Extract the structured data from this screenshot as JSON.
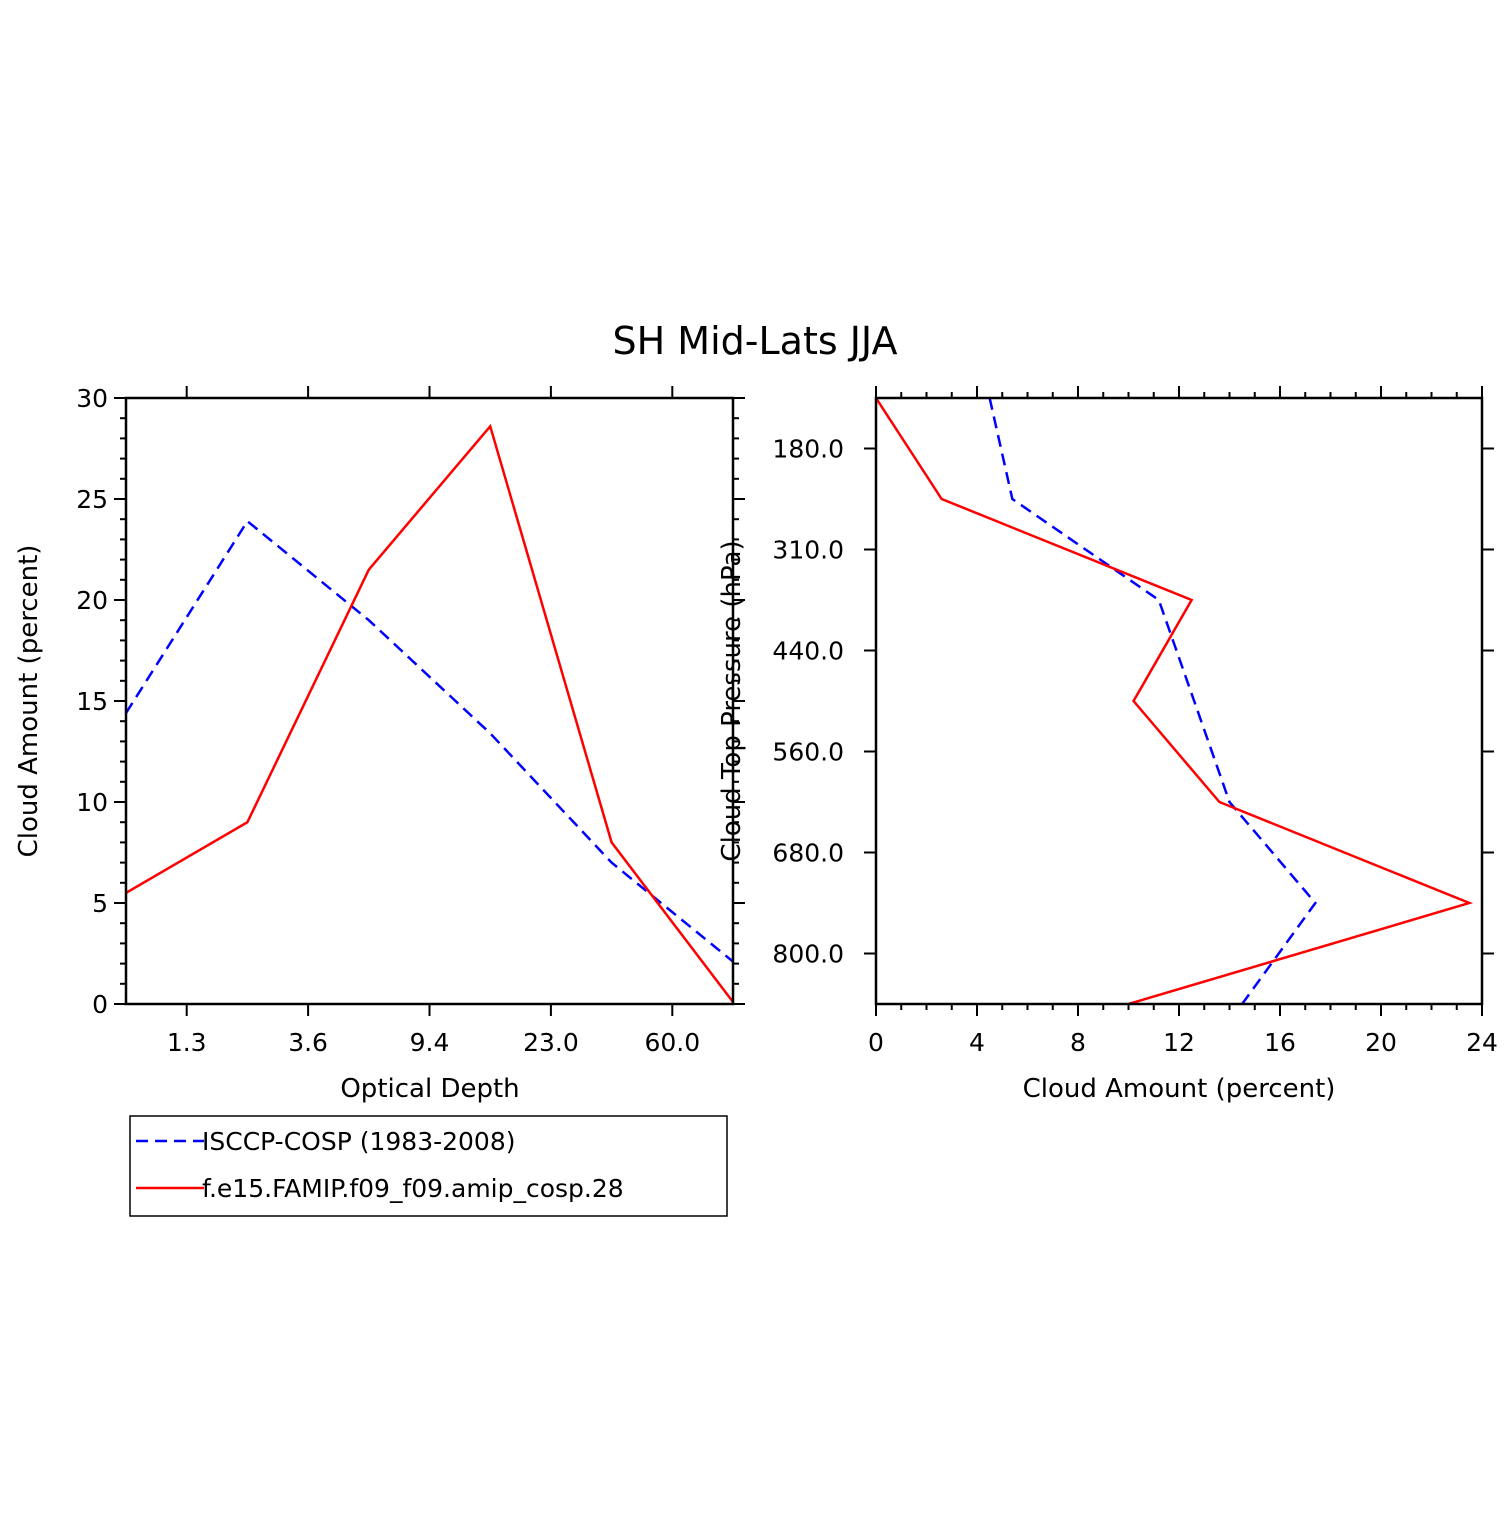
{
  "title": "SH Mid-Lats JJA",
  "colors": {
    "obs": "#0000ff",
    "model": "#ff0000",
    "axis": "#000000"
  },
  "legend": {
    "obs_label": "ISCCP-COSP (1983-2008)",
    "model_label": "f.e15.FAMIP.f09_f09.amip_cosp.28"
  },
  "chart_data": [
    {
      "type": "line",
      "title": "SH Mid-Lats JJA",
      "xlabel": "Optical Depth",
      "ylabel": "Cloud Amount (percent)",
      "x_tick_labels": [
        "1.3",
        "3.6",
        "9.4",
        "23.0",
        "60.0"
      ],
      "y_tick_labels": [
        "0",
        "5",
        "10",
        "15",
        "20",
        "25",
        "30"
      ],
      "x": [
        0,
        1,
        2,
        3,
        4,
        5
      ],
      "xlim": [
        0,
        5
      ],
      "ylim": [
        0,
        30
      ],
      "series": [
        {
          "name": "ISCCP-COSP (1983-2008)",
          "style": "dashed",
          "values": [
            14.4,
            23.9,
            19.0,
            13.4,
            7.0,
            2.1
          ]
        },
        {
          "name": "f.e15.FAMIP.f09_f09.amip_cosp.28",
          "style": "solid",
          "values": [
            5.5,
            9.0,
            21.5,
            28.6,
            8.0,
            0.1
          ]
        }
      ]
    },
    {
      "type": "line",
      "xlabel": "Cloud Amount (percent)",
      "ylabel": "Cloud Top Pressure (hPa)",
      "x_tick_labels": [
        "0",
        "4",
        "8",
        "12",
        "16",
        "20",
        "24"
      ],
      "y_tick_labels": [
        "180.0",
        "310.0",
        "440.0",
        "560.0",
        "680.0",
        "800.0"
      ],
      "levels": [
        0,
        1,
        2,
        3,
        4,
        5,
        6
      ],
      "xlim": [
        0,
        24
      ],
      "series": [
        {
          "name": "ISCCP-COSP (1983-2008)",
          "style": "dashed",
          "values": [
            4.5,
            5.4,
            11.2,
            12.6,
            14.0,
            17.4,
            14.5
          ]
        },
        {
          "name": "f.e15.FAMIP.f09_f09.amip_cosp.28",
          "style": "solid",
          "values": [
            0.0,
            2.6,
            12.5,
            10.2,
            13.6,
            23.5,
            10.0
          ]
        }
      ]
    }
  ]
}
